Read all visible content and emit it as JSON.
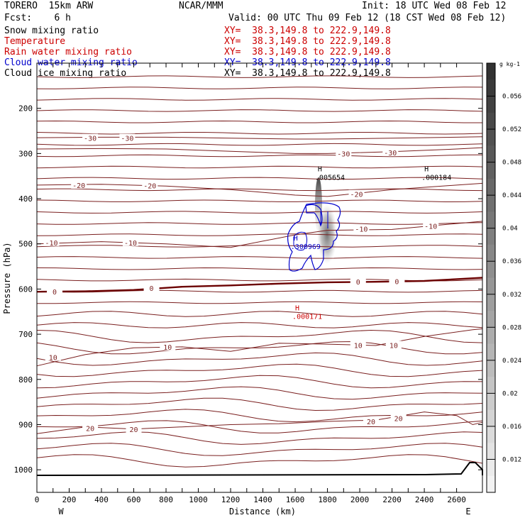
{
  "header": {
    "model": "TORERO  15km ARW",
    "center": "NCAR/MMM",
    "init": "Init: 18 UTC Wed 08 Feb 12",
    "fcst": "Fcst:    6 h",
    "valid": "Valid: 00 UTC Thu 09 Feb 12 (18 CST Wed 08 Feb 12)"
  },
  "fields": [
    {
      "name": "Snow mixing ratio",
      "xy": "XY=  38.3,149.8 to 222.9,149.8",
      "color": "#000000"
    },
    {
      "name": "Temperature",
      "xy": "XY=  38.3,149.8 to 222.9,149.8",
      "color": "#cc0000"
    },
    {
      "name": "Rain water mixing ratio",
      "xy": "XY=  38.3,149.8 to 222.9,149.8",
      "color": "#cc0000"
    },
    {
      "name": "Cloud water mixing ratio",
      "xy": "XY=  38.3,149.8 to 222.9,149.8",
      "color": "#0000cc"
    },
    {
      "name": "Cloud ice mixing ratio",
      "xy": "XY=  38.3,149.8 to 222.9,149.8",
      "color": "#000000"
    }
  ],
  "chart_data": {
    "type": "cross-section",
    "xlabel": "Distance (km)",
    "ylabel": "Pressure (hPa)",
    "xlim": [
      0,
      2760
    ],
    "ylim": [
      1050,
      100
    ],
    "x_ticks": [
      0,
      100,
      200,
      300,
      400,
      500,
      600,
      700,
      800,
      900,
      1000,
      1100,
      1200,
      1300,
      1400,
      1500,
      1600,
      1700,
      1800,
      1900,
      2000,
      2100,
      2200,
      2300,
      2400,
      2500,
      2600
    ],
    "x_tick_labels": [
      "0",
      "",
      "200",
      "",
      "400",
      "",
      "600",
      "",
      "800",
      "",
      "1000",
      "",
      "1200",
      "",
      "1400",
      "",
      "1600",
      "",
      "1800",
      "",
      "2000",
      "",
      "2200",
      "",
      "2400",
      "",
      "2600"
    ],
    "y_ticks": [
      200,
      300,
      400,
      500,
      600,
      700,
      800,
      900,
      1000
    ],
    "y_tick_labels": [
      "200",
      "300",
      "400",
      "500",
      "600",
      "700",
      "800",
      "900",
      "1000"
    ],
    "x_end_labels": {
      "left": "W",
      "right": "E"
    },
    "colorbar": {
      "unit": "g kg-1",
      "ticks": [
        "0.056",
        "0.052",
        "0.048",
        "0.044",
        "0.04",
        "0.036",
        "0.032",
        "0.028",
        "0.024",
        "0.02",
        "0.016",
        "0.012"
      ],
      "tick_values": [
        0.056,
        0.052,
        0.048,
        0.044,
        0.04,
        0.036,
        0.032,
        0.028,
        0.024,
        0.02,
        0.016,
        0.012
      ],
      "range": [
        0.008,
        0.06
      ]
    },
    "temperature_contours": [
      {
        "level": -30,
        "points": [
          [
            0,
            265
          ],
          [
            400,
            264
          ],
          [
            800,
            264
          ],
          [
            1200,
            266
          ],
          [
            1600,
            268
          ],
          [
            1800,
            268
          ],
          [
            2200,
            266
          ],
          [
            2600,
            264
          ],
          [
            2760,
            263
          ]
        ],
        "labels": [
          [
            330,
            266,
            "-30"
          ],
          [
            560,
            266,
            "-30"
          ]
        ]
      },
      {
        "level": -30,
        "points": [
          [
            0,
            290
          ],
          [
            400,
            289
          ],
          [
            800,
            290
          ],
          [
            1200,
            295
          ],
          [
            1600,
            300
          ],
          [
            1800,
            300
          ],
          [
            2200,
            296
          ],
          [
            2600,
            290
          ],
          [
            2760,
            287
          ]
        ],
        "labels": [
          [
            1900,
            300,
            "-30"
          ],
          [
            2190,
            298,
            "-30"
          ]
        ]
      },
      {
        "level": -20,
        "points": [
          [
            0,
            370
          ],
          [
            400,
            368
          ],
          [
            800,
            372
          ],
          [
            1200,
            380
          ],
          [
            1600,
            392
          ],
          [
            1800,
            395
          ],
          [
            2200,
            380
          ],
          [
            2600,
            370
          ],
          [
            2760,
            366
          ]
        ],
        "labels": [
          [
            260,
            370,
            "-20"
          ],
          [
            700,
            371,
            "-20"
          ],
          [
            1980,
            390,
            "-20"
          ]
        ]
      },
      {
        "level": -10,
        "points": [
          [
            0,
            500
          ],
          [
            400,
            495
          ],
          [
            800,
            500
          ],
          [
            1200,
            508
          ],
          [
            1600,
            480
          ],
          [
            1800,
            470
          ],
          [
            2200,
            468
          ],
          [
            2600,
            455
          ],
          [
            2760,
            450
          ]
        ],
        "labels": [
          [
            90,
            497,
            "-10"
          ],
          [
            580,
            497,
            "-10"
          ],
          [
            2010,
            467,
            "-10"
          ],
          [
            2440,
            460,
            "-10"
          ]
        ]
      },
      {
        "level": 0,
        "points": [
          [
            0,
            606
          ],
          [
            300,
            605
          ],
          [
            600,
            602
          ],
          [
            900,
            595
          ],
          [
            1200,
            592
          ],
          [
            1500,
            588
          ],
          [
            1800,
            585
          ],
          [
            2100,
            584
          ],
          [
            2400,
            582
          ],
          [
            2760,
            575
          ]
        ],
        "labels": [
          [
            110,
            606,
            "0"
          ],
          [
            710,
            598,
            "0"
          ],
          [
            1990,
            584,
            "0"
          ],
          [
            2230,
            583,
            "0"
          ]
        ]
      },
      {
        "level": 10,
        "points": [
          [
            0,
            770
          ],
          [
            300,
            745
          ],
          [
            600,
            730
          ],
          [
            900,
            728
          ],
          [
            1200,
            738
          ],
          [
            1500,
            720
          ],
          [
            1800,
            722
          ],
          [
            2100,
            725
          ],
          [
            2400,
            705
          ],
          [
            2700,
            690
          ],
          [
            2760,
            688
          ]
        ],
        "labels": [
          [
            100,
            751,
            "10"
          ],
          [
            810,
            728,
            "10"
          ],
          [
            1990,
            724,
            "10"
          ],
          [
            2210,
            724,
            "10"
          ]
        ]
      },
      {
        "level": 20,
        "points": [
          [
            0,
            920
          ],
          [
            300,
            905
          ],
          [
            600,
            910
          ],
          [
            900,
            905
          ],
          [
            1200,
            900
          ],
          [
            1500,
            898
          ],
          [
            1800,
            893
          ],
          [
            2100,
            890
          ],
          [
            2400,
            872
          ],
          [
            2600,
            880
          ],
          [
            2700,
            900
          ],
          [
            2760,
            895
          ]
        ],
        "labels": [
          [
            330,
            908,
            "20"
          ],
          [
            600,
            910,
            "20"
          ],
          [
            2070,
            893,
            "20"
          ],
          [
            2240,
            886,
            "20"
          ]
        ]
      }
    ],
    "extrema_labels": [
      {
        "symbol": "H",
        "value": ".005654",
        "x": 1740,
        "p": 352,
        "color": "#000000"
      },
      {
        "symbol": "H",
        "value": ".000184",
        "x": 2400,
        "p": 352,
        "color": "#000000"
      },
      {
        "symbol": "H",
        "value": ".300969",
        "x": 1590,
        "p": 505,
        "color": "#0000cc"
      },
      {
        "symbol": "H",
        "value": ".000171",
        "x": 1600,
        "p": 660,
        "color": "#cc0000"
      }
    ]
  }
}
